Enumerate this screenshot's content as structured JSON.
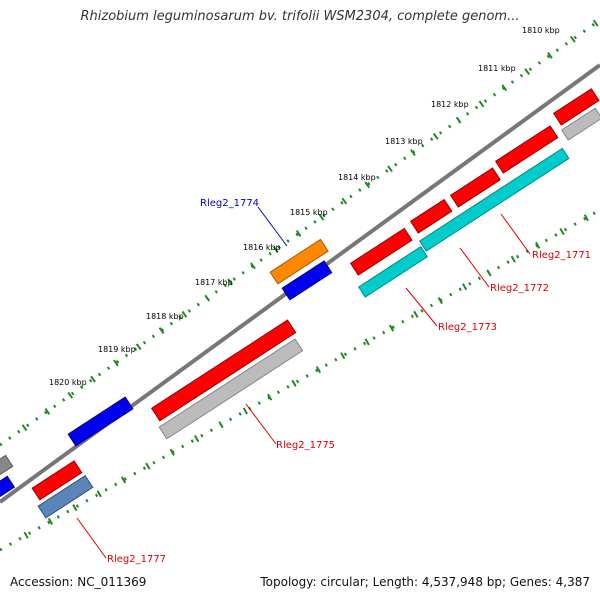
{
  "title": "Rhizobium leguminosarum bv. trifolii WSM2304, complete genom...",
  "footer": {
    "accession": "Accession: NC_011369",
    "summary": "Topology: circular; Length: 4,537,948 bp; Genes: 4,387"
  },
  "colors": {
    "forward_gene": "#ff0000",
    "forward_gene_alt": "#0000ee",
    "reverse_gene": "#bbbbbb",
    "reverse_cyan": "#00cccc",
    "reverse_steelblue": "#5b84b8",
    "highlight_orange": "#ff8800",
    "ruler": "#228822",
    "backbone": "#777777",
    "label_red": "#dd0000",
    "label_blue": "#0000cc"
  },
  "ruler_ticks": [
    "1810 kbp",
    "1811 kbp",
    "1812 kbp",
    "1813 kbp",
    "1814 kbp",
    "1815 kbp",
    "1816 kbp",
    "1817 kbp",
    "1818 kbp",
    "1819 kbp",
    "1820 kbp"
  ],
  "gene_labels": [
    {
      "id": "Rleg2_1774",
      "color": "blue"
    },
    {
      "id": "Rleg2_1771",
      "color": "red"
    },
    {
      "id": "Rleg2_1772",
      "color": "red"
    },
    {
      "id": "Rleg2_1773",
      "color": "red"
    },
    {
      "id": "Rleg2_1775",
      "color": "red"
    },
    {
      "id": "Rleg2_1777",
      "color": "red"
    }
  ]
}
